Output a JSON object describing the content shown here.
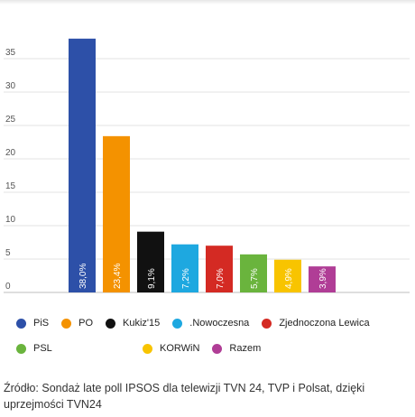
{
  "chart_data": {
    "type": "bar",
    "categories": [
      "PiS",
      "PO",
      "Kukiz'15",
      ".Nowoczesna",
      "Zjednoczona Lewica",
      "PSL",
      "KORWiN",
      "Razem"
    ],
    "values": [
      38.0,
      23.4,
      9.1,
      7.2,
      7.0,
      5.7,
      4.9,
      3.9
    ],
    "data_labels": [
      "38,0%",
      "23,4%",
      "9,1%",
      "7,2%",
      "7,0%",
      "5,7%",
      "4,9%",
      "3,9%"
    ],
    "colors": [
      "#2d50a8",
      "#f49200",
      "#111111",
      "#1ea8e0",
      "#d42a23",
      "#6ab43d",
      "#f8c400",
      "#b03d96"
    ],
    "ylim": [
      0,
      40
    ],
    "yticks": [
      0,
      5,
      10,
      15,
      20,
      25,
      30,
      35
    ],
    "ytick_labels": [
      "0",
      "5",
      "10",
      "15",
      "20",
      "25",
      "30",
      "35"
    ],
    "grid": true,
    "legend_position": "bottom",
    "title": "",
    "xlabel": "",
    "ylabel": ""
  },
  "legend": [
    {
      "label": "PiS",
      "color": "#2d50a8"
    },
    {
      "label": "PO",
      "color": "#f49200"
    },
    {
      "label": "Kukiz'15",
      "color": "#111111"
    },
    {
      "label": ".Nowoczesna",
      "color": "#1ea8e0"
    },
    {
      "label": "Zjednoczona Lewica",
      "color": "#d42a23"
    },
    {
      "label": "PSL",
      "color": "#6ab43d"
    },
    {
      "label": "KORWiN",
      "color": "#f8c400"
    },
    {
      "label": "Razem",
      "color": "#b03d96"
    }
  ],
  "source_text": "Źródło: Sondaż late poll IPSOS dla telewizji TVN 24, TVP i Polsat, dzięki uprzejmości TVN24"
}
